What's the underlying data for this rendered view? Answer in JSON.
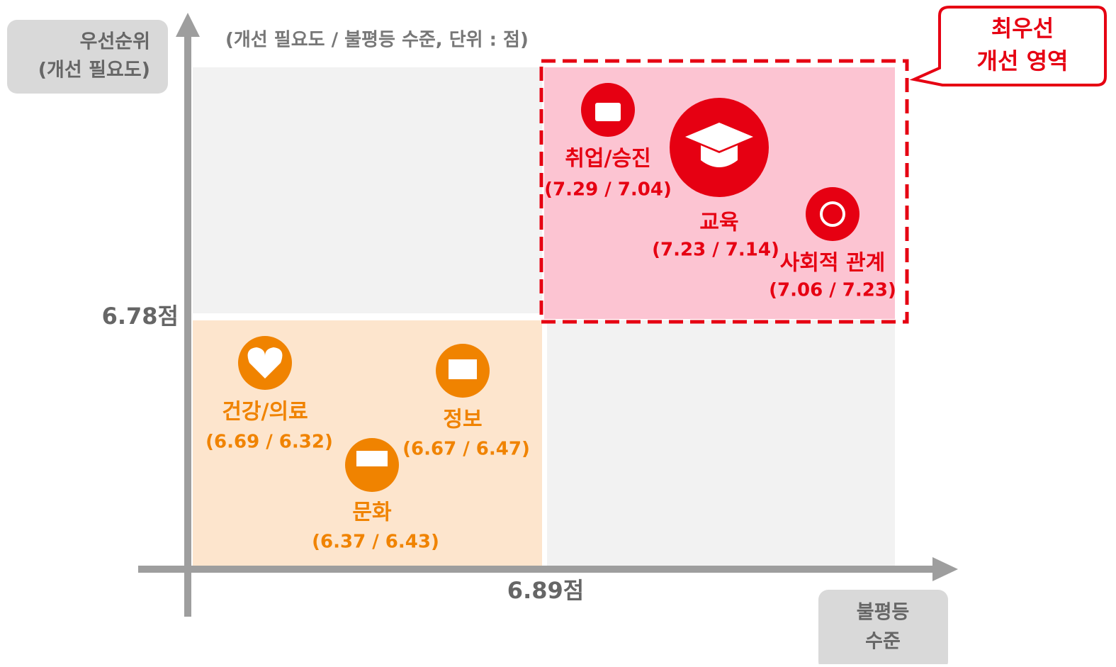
{
  "y_axis_label": [
    "우선순위",
    "(개선 필요도)"
  ],
  "x_axis_label": [
    "불평등",
    "수준"
  ],
  "subtitle": "(개선 필요도 / 불평등 수준, 단위 : 점)",
  "y_threshold": "6.78점",
  "x_threshold": "6.89점",
  "callout": [
    "최우선",
    "개선 영역"
  ],
  "items": [
    {
      "label": "취업/승진",
      "scores": "(7.29 / 7.04)"
    },
    {
      "label": "교육",
      "scores": "(7.23 / 7.14)"
    },
    {
      "label": "사회적 관계",
      "scores": "(7.06 / 7.23)"
    },
    {
      "label": "건강/의료",
      "scores": "(6.69 / 6.32)"
    },
    {
      "label": "정보",
      "scores": "(6.67 / 6.47)"
    },
    {
      "label": "문화",
      "scores": "(6.37 / 6.43)"
    }
  ]
}
